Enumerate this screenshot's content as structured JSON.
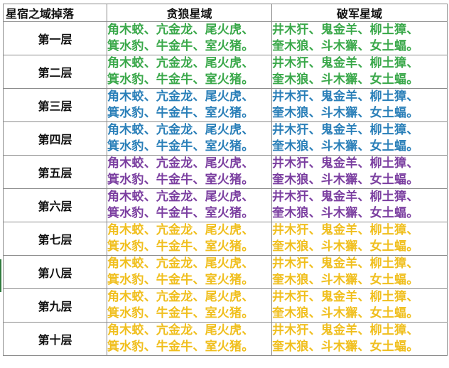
{
  "sheet": {
    "headers": [
      "星宿之域掉落",
      "贪狼星域",
      "破军星域"
    ],
    "rows": [
      {
        "level": "第一层",
        "color": "#3aa84a",
        "tanlang": [
          "角木蛟、亢金龙、尾火虎、",
          "箕水豹、牛金牛、室火猪。"
        ],
        "pojun": [
          "井木犴、鬼金羊、柳土獐、",
          "奎木狼、斗木獬、女土蝠。"
        ]
      },
      {
        "level": "第二层",
        "color": "#3aa84a",
        "tanlang": [
          "角木蛟、亢金龙、尾火虎、",
          "箕水豹、牛金牛、室火猪。"
        ],
        "pojun": [
          "井木犴、鬼金羊、柳土獐、",
          "奎木狼、斗木獬、女土蝠。"
        ]
      },
      {
        "level": "第三层",
        "color": "#2a7fb8",
        "tanlang": [
          "角木蛟、亢金龙、尾火虎、",
          "箕水豹、牛金牛、室火猪。"
        ],
        "pojun": [
          "井木犴、鬼金羊、柳土獐、",
          "奎木狼、斗木獬、女土蝠。"
        ]
      },
      {
        "level": "第四层",
        "color": "#2a7fb8",
        "tanlang": [
          "角木蛟、亢金龙、尾火虎、",
          "箕水豹、牛金牛、室火猪。"
        ],
        "pojun": [
          "井木犴、鬼金羊、柳土獐、",
          "奎木狼、斗木獬、女土蝠。"
        ]
      },
      {
        "level": "第五层",
        "color": "#7b3fa0",
        "tanlang": [
          "角木蛟、亢金龙、尾火虎、",
          "箕水豹、牛金牛、室火猪。"
        ],
        "pojun": [
          "井木犴、鬼金羊、柳土獐、",
          "奎木狼、斗木獬、女土蝠。"
        ]
      },
      {
        "level": "第六层",
        "color": "#7b3fa0",
        "tanlang": [
          "角木蛟、亢金龙、尾火虎、",
          "箕水豹、牛金牛、室火猪。"
        ],
        "pojun": [
          "井木犴、鬼金羊、柳土獐、",
          "奎木狼、斗木獬、女土蝠。"
        ]
      },
      {
        "level": "第七层",
        "color": "#f0bf1e",
        "tanlang": [
          "角木蛟、亢金龙、尾火虎、",
          "箕水豹、牛金牛、室火猪。"
        ],
        "pojun": [
          "井木犴、鬼金羊、柳土獐、",
          "奎木狼、斗木獬、女土蝠。"
        ]
      },
      {
        "level": "第八层",
        "color": "#f0bf1e",
        "tanlang": [
          "角木蛟、亢金龙、尾火虎、",
          "箕水豹、牛金牛、室火猪。"
        ],
        "pojun": [
          "井木犴、鬼金羊、柳土獐、",
          "奎木狼、斗木獬、女土蝠。"
        ]
      },
      {
        "level": "第九层",
        "color": "#f0bf1e",
        "tanlang": [
          "角木蛟、亢金龙、尾火虎、",
          "箕水豹、牛金牛、室火猪。"
        ],
        "pojun": [
          "井木犴、鬼金羊、柳土獐、",
          "奎木狼、斗木獬、女土蝠。"
        ]
      },
      {
        "level": "第十层",
        "color": "#f0bf1e",
        "tanlang": [
          "角木蛟、亢金龙、尾火虎、",
          "箕水豹、牛金牛、室火猪。"
        ],
        "pojun": [
          "井木犴、鬼金羊、柳土獐、",
          "奎木狼、斗木獬、女土蝠。"
        ]
      }
    ]
  }
}
